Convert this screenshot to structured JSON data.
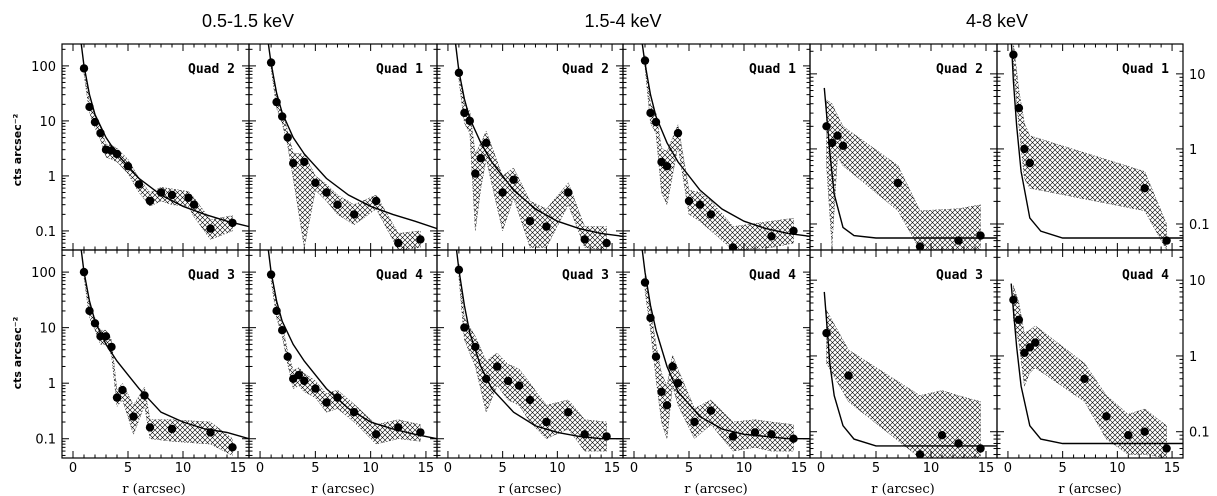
{
  "figure": {
    "bands": [
      "0.5-1.5 keV",
      "1.5-4 keV",
      "4-8 keV"
    ],
    "ylabel": "cts arcsec⁻²",
    "xlabel": "r (arcsec)",
    "xticklabels": [
      "0",
      "5",
      "10",
      "15"
    ],
    "yticklabels": [
      "0.1",
      "1",
      "10",
      "100"
    ],
    "colors": {
      "points": "#000000",
      "hatch": "#000000",
      "model": "#000000",
      "background": "#ffffff"
    }
  },
  "chart_data": [
    {
      "type": "scatter",
      "label": "Quad 2",
      "xlim": [
        -1,
        16
      ],
      "ylim": [
        0.045,
        250
      ],
      "yscale": "log",
      "x": [
        1.0,
        1.5,
        2.0,
        2.5,
        3.0,
        3.5,
        4.0,
        5.0,
        6.0,
        7.0,
        8.0,
        9.0,
        10.5,
        11.0,
        12.5,
        14.5
      ],
      "y": [
        90,
        18,
        9.5,
        6.0,
        3.0,
        2.9,
        2.5,
        1.5,
        0.7,
        0.35,
        0.5,
        0.45,
        0.4,
        0.3,
        0.11,
        0.14
      ],
      "band_low": [
        70,
        14,
        7.5,
        4.5,
        2.2,
        2.0,
        1.8,
        1.1,
        0.5,
        0.28,
        0.35,
        0.3,
        0.28,
        0.18,
        0.07,
        0.1
      ],
      "band_high": [
        110,
        22,
        12,
        7.5,
        3.8,
        3.6,
        3.2,
        2.0,
        0.9,
        0.5,
        0.62,
        0.58,
        0.52,
        0.4,
        0.16,
        0.19
      ],
      "model_x": [
        0.7,
        1,
        1.5,
        2,
        3,
        4,
        6,
        8,
        10,
        12,
        14,
        16
      ],
      "model_y": [
        300,
        100,
        30,
        13,
        5,
        2.5,
        0.9,
        0.45,
        0.28,
        0.2,
        0.15,
        0.12
      ]
    },
    {
      "type": "scatter",
      "label": "Quad 1",
      "xlim": [
        -1,
        16
      ],
      "ylim": [
        0.045,
        250
      ],
      "yscale": "log",
      "x": [
        1.0,
        1.5,
        2.0,
        2.5,
        3.0,
        4.0,
        5.0,
        6.0,
        7.0,
        8.5,
        10.5,
        12.5,
        14.5
      ],
      "y": [
        115,
        22,
        12,
        5.0,
        1.7,
        1.8,
        0.75,
        0.5,
        0.3,
        0.2,
        0.35,
        0.06,
        0.07
      ],
      "band_low": [
        90,
        17,
        9,
        3.5,
        0.9,
        0.05,
        0.55,
        0.35,
        0.2,
        0.13,
        0.25,
        0.045,
        0.05
      ],
      "band_high": [
        140,
        28,
        15,
        6.5,
        2.6,
        2.5,
        1.0,
        0.7,
        0.45,
        0.3,
        0.45,
        0.09,
        0.1
      ],
      "model_x": [
        0.7,
        1,
        1.5,
        2,
        3,
        4,
        6,
        8,
        10,
        12,
        14,
        16
      ],
      "model_y": [
        300,
        110,
        32,
        14,
        5,
        2.5,
        0.9,
        0.45,
        0.28,
        0.2,
        0.15,
        0.11
      ]
    },
    {
      "type": "scatter",
      "label": "Quad 2",
      "xlim": [
        -1,
        16
      ],
      "ylim": [
        0.045,
        250
      ],
      "yscale": "log",
      "x": [
        1.0,
        1.5,
        2.0,
        2.5,
        3.0,
        3.5,
        5.0,
        6.0,
        7.5,
        9.0,
        11.0,
        12.5,
        14.5
      ],
      "y": [
        75,
        14,
        10,
        1.1,
        2.1,
        4.0,
        0.5,
        0.85,
        0.15,
        0.12,
        0.5,
        0.07,
        0.06
      ],
      "band_low": [
        55,
        9,
        6,
        0.1,
        0.6,
        2.0,
        0.1,
        0.4,
        0.05,
        0.05,
        0.3,
        0.05,
        0.045
      ],
      "band_high": [
        95,
        20,
        15,
        2.5,
        4.0,
        6.5,
        1.0,
        1.4,
        0.35,
        0.25,
        0.75,
        0.12,
        0.12
      ],
      "model_x": [
        0.7,
        1,
        1.5,
        2,
        3,
        4,
        6,
        8,
        10,
        12,
        14,
        16
      ],
      "model_y": [
        250,
        80,
        25,
        11,
        4,
        1.8,
        0.55,
        0.25,
        0.15,
        0.11,
        0.09,
        0.08
      ]
    },
    {
      "type": "scatter",
      "label": "Quad 1",
      "xlim": [
        -1,
        16
      ],
      "ylim": [
        0.045,
        250
      ],
      "yscale": "log",
      "x": [
        1.0,
        1.5,
        2.0,
        2.5,
        3.0,
        4.0,
        5.0,
        6.0,
        7.0,
        9.0,
        12.5,
        14.5
      ],
      "y": [
        125,
        14,
        9.5,
        1.8,
        1.5,
        6.0,
        0.35,
        0.3,
        0.2,
        0.05,
        0.08,
        0.1
      ],
      "band_low": [
        95,
        9,
        6,
        0.5,
        0.3,
        3.5,
        0.2,
        0.15,
        0.1,
        0.045,
        0.05,
        0.06
      ],
      "band_high": [
        155,
        20,
        14,
        3.2,
        2.8,
        8.5,
        0.55,
        0.5,
        0.35,
        0.12,
        0.15,
        0.17
      ],
      "model_x": [
        0.7,
        1,
        1.5,
        2,
        3,
        4,
        6,
        8,
        10,
        12,
        14,
        16
      ],
      "model_y": [
        300,
        110,
        30,
        12,
        4,
        1.8,
        0.55,
        0.25,
        0.15,
        0.11,
        0.09,
        0.08
      ]
    },
    {
      "type": "scatter",
      "label": "Quad 2",
      "xlim": [
        -1,
        16
      ],
      "ylim": [
        0.045,
        25
      ],
      "yscale": "log",
      "x": [
        0.5,
        1.0,
        1.5,
        2.0,
        7.0,
        9.0,
        12.5,
        14.5
      ],
      "y": [
        2.0,
        1.2,
        1.5,
        1.1,
        0.35,
        0.05,
        0.06,
        0.07
      ],
      "band_low": [
        0.6,
        0.05,
        0.8,
        0.6,
        0.15,
        0.045,
        0.045,
        0.045
      ],
      "band_high": [
        4.5,
        4.0,
        2.8,
        2.0,
        0.6,
        0.15,
        0.16,
        0.18
      ],
      "model_x": [
        0.3,
        0.5,
        0.8,
        1.2,
        2,
        3,
        5,
        8,
        12,
        16
      ],
      "model_y": [
        6.5,
        3.0,
        0.9,
        0.25,
        0.09,
        0.07,
        0.065,
        0.065,
        0.065,
        0.065
      ]
    },
    {
      "type": "scatter",
      "label": "Quad 1",
      "xlim": [
        -1,
        16
      ],
      "ylim": [
        0.045,
        25
      ],
      "yscale": "log",
      "x": [
        0.5,
        1.0,
        1.5,
        2.0,
        12.5,
        14.5
      ],
      "y": [
        18,
        3.5,
        1.0,
        0.65,
        0.3,
        0.06
      ],
      "band_low": [
        12,
        2.0,
        0.4,
        0.3,
        0.15,
        0.045
      ],
      "band_high": [
        26,
        6.0,
        2.2,
        1.5,
        0.5,
        0.1
      ],
      "model_x": [
        0.3,
        0.5,
        0.8,
        1.2,
        2,
        3,
        5,
        8,
        12,
        16
      ],
      "model_y": [
        30,
        8,
        2.0,
        0.5,
        0.12,
        0.08,
        0.065,
        0.065,
        0.065,
        0.065
      ]
    },
    {
      "type": "scatter",
      "label": "Quad 3",
      "xlim": [
        -1,
        16
      ],
      "ylim": [
        0.045,
        250
      ],
      "yscale": "log",
      "x": [
        1.0,
        1.5,
        2.0,
        2.5,
        3.0,
        3.5,
        4.0,
        4.5,
        5.5,
        6.5,
        7.0,
        9.0,
        12.5,
        14.5
      ],
      "y": [
        100,
        20,
        12,
        7.0,
        7.0,
        4.5,
        0.55,
        0.75,
        0.25,
        0.6,
        0.16,
        0.15,
        0.13,
        0.07
      ],
      "band_low": [
        80,
        15,
        9,
        5,
        5,
        3.2,
        0.38,
        0.5,
        0.12,
        0.4,
        0.1,
        0.09,
        0.08,
        0.05
      ],
      "band_high": [
        120,
        25,
        15,
        9,
        9,
        6,
        0.75,
        1.0,
        0.4,
        0.85,
        0.22,
        0.22,
        0.2,
        0.1
      ],
      "model_x": [
        0.7,
        1,
        1.5,
        2,
        3,
        4,
        6,
        8,
        10,
        12,
        14,
        16
      ],
      "model_y": [
        300,
        100,
        30,
        13,
        5,
        2.5,
        0.8,
        0.3,
        0.2,
        0.15,
        0.13,
        0.1
      ]
    },
    {
      "type": "scatter",
      "label": "Quad 4",
      "xlim": [
        -1,
        16
      ],
      "ylim": [
        0.045,
        250
      ],
      "yscale": "log",
      "x": [
        1.0,
        1.5,
        2.0,
        2.5,
        3.0,
        3.5,
        4.0,
        5.0,
        6.0,
        7.0,
        8.5,
        10.5,
        12.5,
        14.5
      ],
      "y": [
        90,
        20,
        9.0,
        3.0,
        1.2,
        1.4,
        1.1,
        0.8,
        0.45,
        0.55,
        0.3,
        0.12,
        0.16,
        0.13
      ],
      "band_low": [
        70,
        15,
        7,
        2.2,
        0.8,
        0.9,
        0.7,
        0.55,
        0.3,
        0.35,
        0.2,
        0.08,
        0.1,
        0.09
      ],
      "band_high": [
        110,
        25,
        11,
        3.8,
        1.7,
        1.9,
        1.5,
        1.1,
        0.65,
        0.75,
        0.42,
        0.18,
        0.22,
        0.18
      ],
      "model_x": [
        0.7,
        1,
        1.5,
        2,
        3,
        4,
        6,
        8,
        10,
        12,
        14,
        16
      ],
      "model_y": [
        300,
        100,
        30,
        13,
        5,
        2.5,
        0.8,
        0.35,
        0.2,
        0.15,
        0.12,
        0.1
      ]
    },
    {
      "type": "scatter",
      "label": "Quad 3",
      "xlim": [
        -1,
        16
      ],
      "ylim": [
        0.045,
        250
      ],
      "yscale": "log",
      "x": [
        1.0,
        1.5,
        2.5,
        3.5,
        4.5,
        5.5,
        6.5,
        7.5,
        9.0,
        11.0,
        12.5,
        14.5
      ],
      "y": [
        110,
        10,
        4.5,
        1.2,
        2.0,
        1.1,
        0.9,
        0.5,
        0.2,
        0.3,
        0.12,
        0.11
      ],
      "band_low": [
        80,
        6,
        2.0,
        0.3,
        0.9,
        0.5,
        0.4,
        0.2,
        0.1,
        0.15,
        0.06,
        0.06
      ],
      "band_high": [
        140,
        15,
        7,
        2.5,
        3.5,
        2.2,
        1.8,
        1.0,
        0.4,
        0.5,
        0.22,
        0.2
      ],
      "model_x": [
        0.7,
        1,
        1.5,
        2,
        3,
        4,
        6,
        8,
        10,
        12,
        14,
        16
      ],
      "model_y": [
        350,
        110,
        25,
        8,
        2.0,
        0.8,
        0.3,
        0.17,
        0.13,
        0.11,
        0.1,
        0.1
      ]
    },
    {
      "type": "scatter",
      "label": "Quad 4",
      "xlim": [
        -1,
        16
      ],
      "ylim": [
        0.045,
        250
      ],
      "yscale": "log",
      "x": [
        1.0,
        1.5,
        2.0,
        2.5,
        3.0,
        3.5,
        4.0,
        5.5,
        7.0,
        9.0,
        11.0,
        12.5,
        14.5
      ],
      "y": [
        65,
        15,
        3.0,
        0.7,
        0.4,
        2.0,
        1.0,
        0.2,
        0.32,
        0.11,
        0.13,
        0.12,
        0.1
      ],
      "band_low": [
        45,
        9,
        1.2,
        0.2,
        0.1,
        0.9,
        0.4,
        0.1,
        0.18,
        0.06,
        0.07,
        0.06,
        0.06
      ],
      "band_high": [
        85,
        21,
        5,
        1.5,
        0.9,
        3.2,
        1.8,
        0.35,
        0.5,
        0.2,
        0.22,
        0.2,
        0.18
      ],
      "model_x": [
        0.7,
        1,
        1.5,
        2,
        3,
        4,
        6,
        8,
        10,
        12,
        14,
        16
      ],
      "model_y": [
        300,
        100,
        25,
        9,
        2.0,
        0.7,
        0.25,
        0.15,
        0.12,
        0.11,
        0.1,
        0.1
      ]
    },
    {
      "type": "scatter",
      "label": "Quad 3",
      "xlim": [
        -1,
        16
      ],
      "ylim": [
        0.045,
        25
      ],
      "yscale": "log",
      "x": [
        0.5,
        2.5,
        9.0,
        11.0,
        12.5,
        14.5
      ],
      "y": [
        2.0,
        0.55,
        0.05,
        0.09,
        0.07,
        0.06
      ],
      "band_low": [
        0.8,
        0.25,
        0.045,
        0.045,
        0.045,
        0.045
      ],
      "band_high": [
        4.0,
        1.2,
        0.3,
        0.35,
        0.3,
        0.25
      ],
      "model_x": [
        0.3,
        0.5,
        0.8,
        1.2,
        2,
        3,
        5,
        8,
        12,
        16
      ],
      "model_y": [
        7.0,
        3.0,
        0.8,
        0.3,
        0.12,
        0.08,
        0.065,
        0.065,
        0.065,
        0.065
      ]
    },
    {
      "type": "scatter",
      "label": "Quad 4",
      "xlim": [
        -1,
        16
      ],
      "ylim": [
        0.045,
        25
      ],
      "yscale": "log",
      "x": [
        0.5,
        1.0,
        1.5,
        2.0,
        2.5,
        7.0,
        9.0,
        11.0,
        12.5,
        14.5
      ],
      "y": [
        5.5,
        3.0,
        1.1,
        1.3,
        1.5,
        0.5,
        0.16,
        0.09,
        0.1,
        0.06
      ],
      "band_low": [
        3.0,
        1.5,
        0.4,
        0.6,
        0.7,
        0.25,
        0.08,
        0.05,
        0.05,
        0.045
      ],
      "band_high": [
        8.5,
        5.0,
        2.0,
        2.2,
        2.5,
        0.8,
        0.3,
        0.17,
        0.2,
        0.12
      ],
      "model_x": [
        0.3,
        0.5,
        0.8,
        1.2,
        2,
        3,
        5,
        8,
        12,
        16
      ],
      "model_y": [
        9.0,
        4.0,
        1.3,
        0.4,
        0.12,
        0.08,
        0.07,
        0.07,
        0.07,
        0.07
      ]
    }
  ]
}
